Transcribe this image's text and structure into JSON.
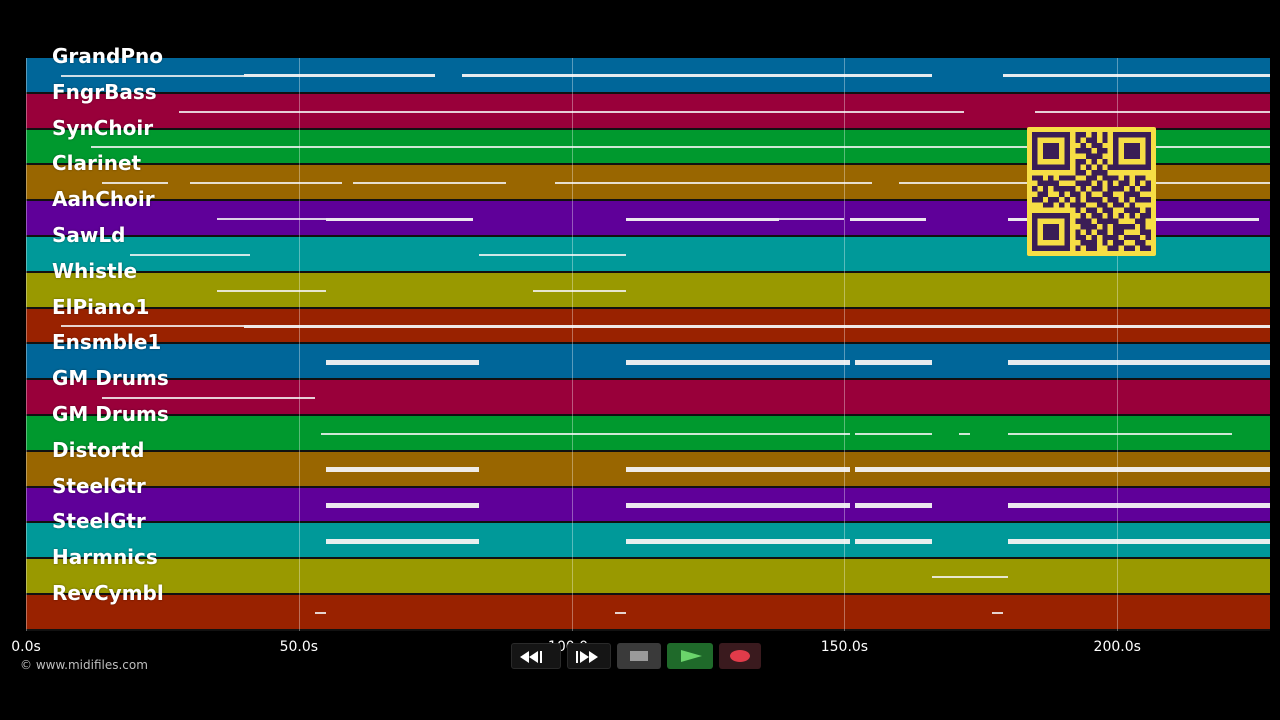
{
  "colors": {
    "lane_palette": [
      "#006699",
      "#99003a",
      "#00992e",
      "#996600",
      "#5f0099",
      "#009999",
      "#999900",
      "#992200"
    ],
    "note": "#f3f3f3",
    "qr_bg": "#f7de45",
    "qr_fg": "#3b1d56",
    "record": "#e23b4a",
    "play": "#6bd46b"
  },
  "tracks": [
    {
      "name": "GrandPno",
      "notes": [
        [
          6.5,
          40,
          1
        ],
        [
          40,
          50,
          2
        ],
        [
          50,
          75,
          2
        ],
        [
          80,
          166,
          2
        ],
        [
          179,
          228,
          2
        ]
      ]
    },
    {
      "name": "FngrBass",
      "notes": [
        [
          28,
          110,
          1
        ],
        [
          110,
          125,
          1
        ],
        [
          125,
          152,
          1
        ],
        [
          152,
          172,
          1
        ],
        [
          185,
          228,
          1
        ]
      ]
    },
    {
      "name": "SynChoir",
      "notes": [
        [
          12,
          60,
          1
        ],
        [
          60,
          120,
          1
        ],
        [
          120,
          152,
          1
        ],
        [
          152,
          172,
          1
        ],
        [
          172,
          190,
          1
        ],
        [
          190,
          228,
          1
        ]
      ]
    },
    {
      "name": "Clarinet",
      "notes": [
        [
          14,
          26,
          1
        ],
        [
          30,
          58,
          1
        ],
        [
          60,
          88,
          1
        ],
        [
          97,
          155,
          1
        ],
        [
          160,
          228,
          1
        ]
      ]
    },
    {
      "name": "AahChoir",
      "notes": [
        [
          35,
          55,
          1
        ],
        [
          55,
          82,
          2
        ],
        [
          110,
          138,
          2
        ],
        [
          138,
          150,
          1
        ],
        [
          151,
          165,
          2
        ],
        [
          180,
          226,
          2
        ]
      ]
    },
    {
      "name": "SawLd",
      "notes": [
        [
          19,
          41,
          1
        ],
        [
          83,
          110,
          1
        ]
      ]
    },
    {
      "name": "Whistle",
      "notes": [
        [
          35,
          55,
          1
        ],
        [
          93,
          110,
          1
        ]
      ]
    },
    {
      "name": "ElPiano1",
      "notes": [
        [
          6.5,
          40,
          1
        ],
        [
          40,
          60,
          2
        ],
        [
          60,
          110,
          2
        ],
        [
          110,
          180,
          2
        ],
        [
          180,
          228,
          2
        ]
      ]
    },
    {
      "name": "Ensmble1",
      "notes": [
        [
          55,
          83,
          3
        ],
        [
          110,
          151,
          3
        ],
        [
          152,
          166,
          3
        ],
        [
          180,
          228,
          3
        ]
      ]
    },
    {
      "name": "GM Drums",
      "notes": [
        [
          14,
          53,
          1
        ]
      ]
    },
    {
      "name": "GM Drums",
      "notes": [
        [
          54,
          110,
          1
        ],
        [
          110,
          151,
          1
        ],
        [
          152,
          166,
          1
        ],
        [
          171,
          173,
          1
        ],
        [
          180,
          221,
          1
        ]
      ]
    },
    {
      "name": "Distortd",
      "notes": [
        [
          55,
          83,
          3
        ],
        [
          110,
          151,
          3
        ],
        [
          152,
          166,
          3
        ],
        [
          166,
          228,
          3
        ]
      ]
    },
    {
      "name": "SteelGtr",
      "notes": [
        [
          55,
          83,
          3
        ],
        [
          110,
          151,
          3
        ],
        [
          152,
          166,
          3
        ],
        [
          180,
          228,
          3
        ]
      ]
    },
    {
      "name": "SteelGtr",
      "notes": [
        [
          55,
          83,
          3
        ],
        [
          110,
          151,
          3
        ],
        [
          152,
          166,
          3
        ],
        [
          180,
          228,
          3
        ]
      ]
    },
    {
      "name": "Harmnics",
      "notes": [
        [
          166,
          180,
          1
        ]
      ]
    },
    {
      "name": "RevCymbl",
      "notes": [
        [
          53,
          55,
          1
        ],
        [
          108,
          110,
          1
        ],
        [
          177,
          179,
          1
        ]
      ]
    }
  ],
  "axis": {
    "max_seconds": 228,
    "ticks": [
      "0.0s",
      "50.0s",
      "100.0s",
      "150.0s",
      "200.0s"
    ],
    "tick_values": [
      0,
      50,
      100,
      150,
      200
    ]
  },
  "copyright": "© www.midifiles.com",
  "transport": {
    "rewind": "rewind-icon",
    "fast_forward": "fast-forward-icon",
    "stop": "stop-icon",
    "play": "play-icon",
    "record": "record-icon"
  },
  "qr": {
    "matrix": [
      "1111111011010101111111",
      "1000001010110101000001",
      "1011101001011001011101",
      "1011101011101101011101",
      "1011101000111001011101",
      "1000001011010101000001",
      "1111111010101011111111",
      "0000000011011100000000",
      "1101011100110111010110",
      "0111100011101010110101",
      "1010111101011011101011",
      "0110010110100110011100",
      "1101101010111011010111",
      "0011010111001101101000",
      "0000000010110110011101",
      "1111111001011010101011",
      "1000001011101111000110",
      "1011101001110101111010",
      "1011101010101101100011",
      "1011101011010111011101",
      "1000001001110101100110",
      "1111111010110011011011"
    ]
  }
}
